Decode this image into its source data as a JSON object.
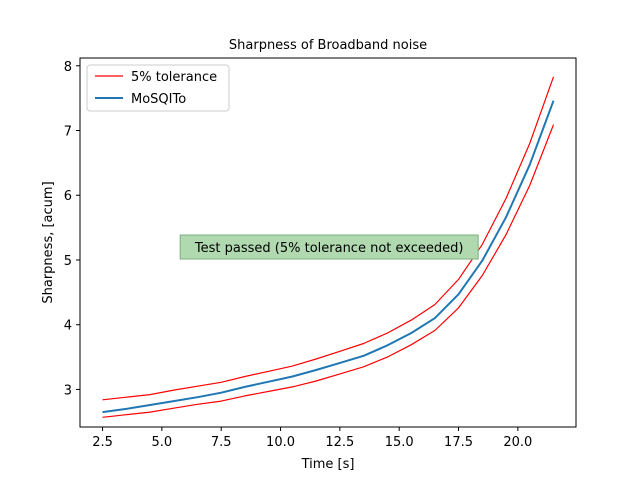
{
  "chart_data": {
    "type": "line",
    "title": "Sharpness of Broadband noise",
    "xlabel": "Time [s]",
    "ylabel": "Sharpness, [acum]",
    "xlim": [
      1.55,
      22.45
    ],
    "ylim": [
      2.42,
      8.12
    ],
    "xticks": [
      2.5,
      5.0,
      7.5,
      10.0,
      12.5,
      15.0,
      17.5,
      20.0
    ],
    "xtick_labels": [
      "2.5",
      "5.0",
      "7.5",
      "10.0",
      "12.5",
      "15.0",
      "17.5",
      "20.0"
    ],
    "yticks": [
      3,
      4,
      5,
      6,
      7,
      8
    ],
    "ytick_labels": [
      "3",
      "4",
      "5",
      "6",
      "7",
      "8"
    ],
    "grid": false,
    "legend_position": "top-left",
    "x": [
      2.5,
      3.5,
      4.5,
      5.5,
      6.5,
      7.5,
      8.5,
      9.5,
      10.5,
      11.5,
      12.5,
      13.5,
      14.5,
      15.5,
      16.5,
      17.5,
      18.5,
      19.5,
      20.5,
      21.5
    ],
    "series": [
      {
        "name": "5% tolerance",
        "color": "#ff0000",
        "style": "thin",
        "values": [
          2.84,
          2.88,
          2.92,
          2.99,
          3.05,
          3.11,
          3.2,
          3.28,
          3.36,
          3.47,
          3.59,
          3.71,
          3.87,
          4.07,
          4.31,
          4.7,
          5.24,
          5.95,
          6.8,
          7.83
        ]
      },
      {
        "name": "",
        "color": "#ff0000",
        "style": "thin",
        "values": [
          2.57,
          2.61,
          2.65,
          2.71,
          2.77,
          2.82,
          2.9,
          2.97,
          3.04,
          3.13,
          3.24,
          3.35,
          3.5,
          3.69,
          3.91,
          4.26,
          4.76,
          5.39,
          6.15,
          7.09
        ]
      },
      {
        "name": "MoSQITo",
        "color": "#1f77b4",
        "style": "thick",
        "values": [
          2.65,
          2.7,
          2.76,
          2.82,
          2.88,
          2.95,
          3.04,
          3.12,
          3.2,
          3.3,
          3.41,
          3.52,
          3.68,
          3.87,
          4.1,
          4.47,
          4.99,
          5.66,
          6.47,
          7.46
        ]
      }
    ],
    "annotation": {
      "text": "Test passed (5% tolerance not exceeded)",
      "x": 12.05,
      "y": 5.2,
      "background": "#b0d9b0"
    }
  }
}
